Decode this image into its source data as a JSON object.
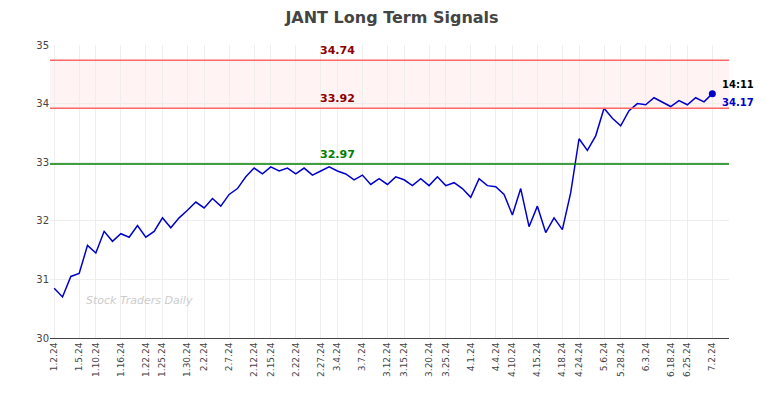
{
  "chart_data": {
    "type": "line",
    "title": "JANT Long Term Signals",
    "categories": [
      "1.2.24",
      null,
      null,
      "1.5.24",
      null,
      "1.10.24",
      null,
      null,
      "1.16.24",
      null,
      null,
      "1.22.24",
      null,
      "1.25.24",
      null,
      null,
      "1.30.24",
      null,
      "2.2.24",
      null,
      null,
      "2.7.24",
      null,
      null,
      "2.12.24",
      null,
      "2.15.24",
      null,
      null,
      "2.22.24",
      null,
      null,
      "2.27.24",
      null,
      "3.4.24",
      null,
      null,
      "3.7.24",
      null,
      null,
      "3.12.24",
      null,
      "3.15.24",
      null,
      null,
      "3.20.24",
      null,
      "3.25.24",
      null,
      null,
      "4.1.24",
      null,
      null,
      "4.4.24",
      null,
      "4.10.24",
      null,
      null,
      "4.15.24",
      null,
      null,
      "4.18.24",
      null,
      "4.24.24",
      null,
      null,
      "5.6.24",
      null,
      "5.28.24",
      null,
      null,
      "6.3.24",
      null,
      null,
      "6.18.24",
      null,
      "6.25.24",
      null,
      null,
      "7.2.24"
    ],
    "series": [
      {
        "color": "#0000cc",
        "values": [
          30.85,
          30.7,
          31.05,
          31.1,
          31.58,
          31.45,
          31.82,
          31.65,
          31.78,
          31.72,
          31.92,
          31.72,
          31.82,
          32.05,
          31.88,
          32.05,
          32.18,
          32.32,
          32.22,
          32.38,
          32.25,
          32.45,
          32.55,
          32.75,
          32.9,
          32.8,
          32.92,
          32.85,
          32.9,
          32.8,
          32.9,
          32.78,
          32.85,
          32.92,
          32.85,
          32.8,
          32.7,
          32.78,
          32.62,
          32.72,
          32.62,
          32.75,
          32.7,
          32.6,
          32.72,
          32.6,
          32.75,
          32.6,
          32.65,
          32.55,
          32.4,
          32.72,
          32.6,
          32.58,
          32.45,
          32.1,
          32.55,
          31.9,
          32.25,
          31.8,
          32.05,
          31.85,
          32.48,
          33.4,
          33.2,
          33.45,
          33.92,
          33.75,
          33.62,
          33.88,
          34.0,
          33.98,
          34.1,
          34.02,
          33.95,
          34.05,
          33.98,
          34.1,
          34.03,
          34.17
        ]
      }
    ],
    "ylim": [
      30,
      35
    ],
    "yticks": [
      30,
      31,
      32,
      33,
      34,
      35
    ],
    "grid": true,
    "band": {
      "from": 33.92,
      "to": 34.74,
      "color": "#ff9999"
    },
    "reference_lines": [
      {
        "value": 34.74,
        "label": "34.74",
        "color": "#ff6666",
        "label_color": "darkred"
      },
      {
        "value": 33.92,
        "label": "33.92",
        "color": "#ff6666",
        "label_color": "darkred"
      },
      {
        "value": 32.97,
        "label": "32.97",
        "color": "green",
        "label_color": "green"
      }
    ],
    "annotations": [
      {
        "text": "14:11",
        "color": "#000000"
      },
      {
        "text": "34.17",
        "color": "#0000cc"
      }
    ],
    "watermark": {
      "text": "Stock Traders Daily",
      "color": "#cccccc"
    }
  }
}
